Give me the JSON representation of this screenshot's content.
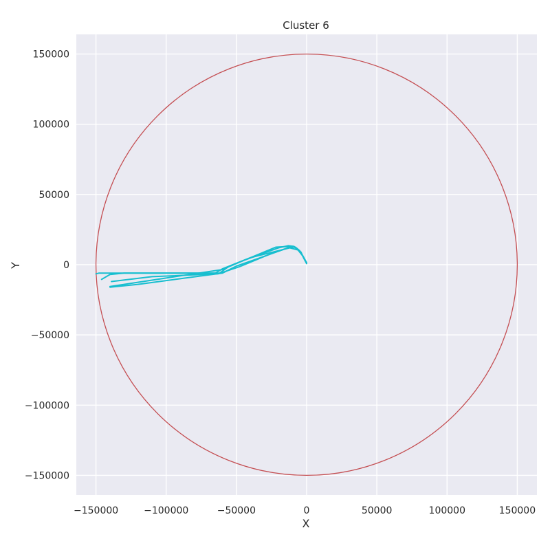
{
  "chart_data": {
    "type": "line",
    "title": "Cluster 6",
    "xlabel": "X",
    "ylabel": "Y",
    "xlim": [
      -164000,
      164000
    ],
    "ylim": [
      -164000,
      164000
    ],
    "xticks": [
      -150000,
      -100000,
      -50000,
      0,
      50000,
      100000,
      150000
    ],
    "yticks": [
      -150000,
      -100000,
      -50000,
      0,
      50000,
      100000,
      150000
    ],
    "xtick_labels": [
      "−150000",
      "−100000",
      "−50000",
      "0",
      "50000",
      "100000",
      "150000"
    ],
    "ytick_labels": [
      "−150000",
      "−100000",
      "−50000",
      "0",
      "50000",
      "100000",
      "150000"
    ],
    "grid": true,
    "background": "#eaeaf2",
    "circle": {
      "cx": 0,
      "cy": 0,
      "r": 150000,
      "color": "#c44e52"
    },
    "series_color": "#17becf",
    "series": [
      {
        "x": [
          0,
          -2000,
          -5000,
          -8000,
          -12000,
          -22000,
          -40000,
          -60000,
          -65000,
          -100000,
          -130000,
          -148000,
          -150000
        ],
        "y": [
          1000,
          5000,
          10000,
          12500,
          13000,
          12500,
          5000,
          -3000,
          -6000,
          -6000,
          -6000,
          -6000,
          -6500
        ]
      },
      {
        "x": [
          0,
          -2000,
          -5000,
          -8000,
          -12000,
          -30000,
          -50000,
          -60000,
          -90000,
          -120000,
          -140000
        ],
        "y": [
          1000,
          5000,
          10000,
          12500,
          12500,
          6000,
          -1000,
          -6000,
          -10000,
          -14000,
          -16000
        ]
      },
      {
        "x": [
          0,
          -3000,
          -6000,
          -12000,
          -40000,
          -55000,
          -62000,
          -100000,
          -130000,
          -140000,
          -146000
        ],
        "y": [
          1500,
          6500,
          10500,
          12000,
          5000,
          -1000,
          -6000,
          -6000,
          -6000,
          -7000,
          -10500
        ]
      },
      {
        "x": [
          0,
          -2500,
          -7000,
          -10000,
          -25000,
          -48000,
          -63000,
          -110000,
          -139000
        ],
        "y": [
          1000,
          6000,
          11500,
          13000,
          8000,
          -1500,
          -6500,
          -8500,
          -12000
        ]
      },
      {
        "x": [
          0,
          -2000,
          -4000,
          -9000,
          -13000,
          -20000,
          -45000,
          -60000,
          -100000,
          -140000
        ],
        "y": [
          800,
          4500,
          9000,
          13000,
          13500,
          12000,
          3000,
          -3500,
          -9500,
          -15500
        ]
      }
    ]
  }
}
